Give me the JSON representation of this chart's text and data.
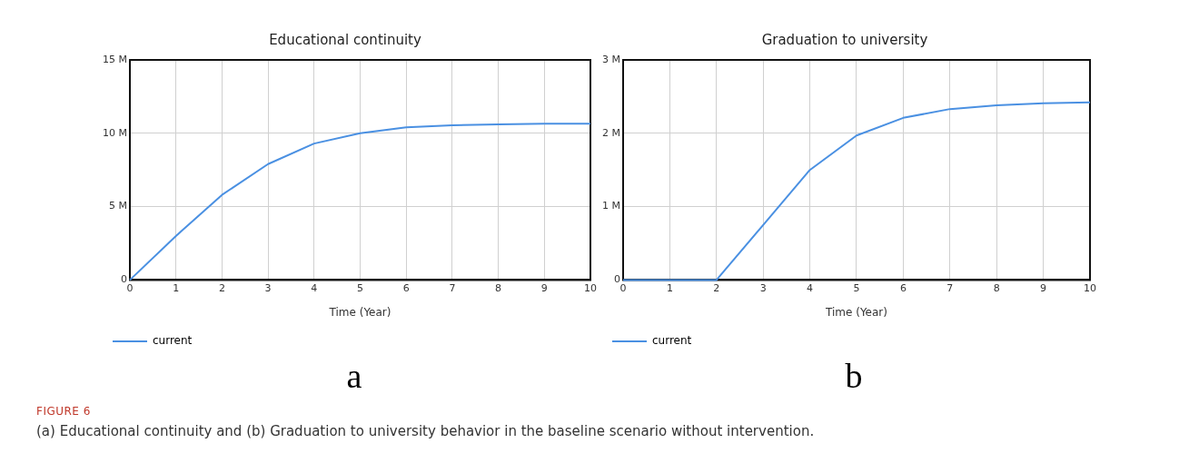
{
  "chart_data": [
    {
      "type": "line",
      "title": "Educational continuity",
      "xlabel": "Time (Year)",
      "x": [
        0,
        1,
        2,
        3,
        4,
        5,
        6,
        7,
        8,
        9,
        10
      ],
      "series": [
        {
          "name": "current",
          "color": "#4a90e2",
          "values": [
            0,
            3000000,
            5800000,
            7900000,
            9300000,
            10000000,
            10400000,
            10550000,
            10600000,
            10650000,
            10650000
          ]
        }
      ],
      "xlim": [
        0,
        10
      ],
      "xticks": [
        0,
        1,
        2,
        3,
        4,
        5,
        6,
        7,
        8,
        9,
        10
      ],
      "ylim": [
        0,
        15000000
      ],
      "yticks": [
        {
          "value": 0,
          "label": "0"
        },
        {
          "value": 5000000,
          "label": "5 M"
        },
        {
          "value": 10000000,
          "label": "10 M"
        },
        {
          "value": 15000000,
          "label": "15 M"
        }
      ],
      "grid": true,
      "legend": "bottom left",
      "marker": "none",
      "line_style": "solid",
      "annotations": [
        "a"
      ]
    },
    {
      "type": "line",
      "title": "Graduation to university",
      "xlabel": "Time (Year)",
      "x": [
        0,
        1,
        2,
        3,
        4,
        5,
        6,
        7,
        8,
        9,
        10
      ],
      "series": [
        {
          "name": "current",
          "color": "#4a90e2",
          "values": [
            0,
            0,
            0,
            750000,
            1500000,
            1970000,
            2210000,
            2330000,
            2380000,
            2410000,
            2420000
          ]
        }
      ],
      "xlim": [
        0,
        10
      ],
      "xticks": [
        0,
        1,
        2,
        3,
        4,
        5,
        6,
        7,
        8,
        9,
        10
      ],
      "ylim": [
        0,
        3000000
      ],
      "yticks": [
        {
          "value": 0,
          "label": "0"
        },
        {
          "value": 1000000,
          "label": "1 M"
        },
        {
          "value": 2000000,
          "label": "2 M"
        },
        {
          "value": 3000000,
          "label": "3 M"
        }
      ],
      "grid": true,
      "legend": "bottom left",
      "marker": "none",
      "line_style": "solid",
      "annotations": [
        "b"
      ]
    },
    {
      "type": "other",
      "title": "FIGURE 6",
      "annotations": [
        "(a) Educational continuity and (b) Graduation to university behavior in the baseline scenario without intervention."
      ]
    }
  ]
}
